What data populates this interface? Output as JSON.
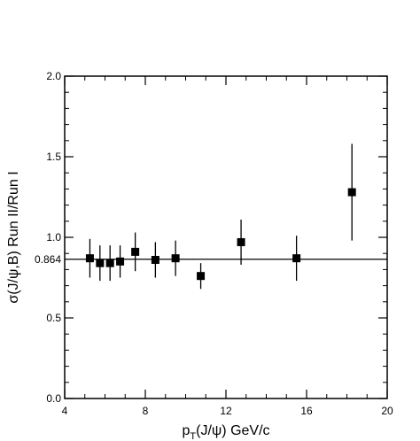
{
  "chart_data": {
    "type": "scatter",
    "title": "",
    "xlabel": "p_T(J/ψ) GeV/c",
    "ylabel": "σ(J/ψ,B) Run II/Run I",
    "xlim": [
      4,
      20
    ],
    "ylim": [
      0.0,
      2.0
    ],
    "x_ticks": [
      4,
      8,
      12,
      16,
      20
    ],
    "y_ticks": [
      0.0,
      0.5,
      1.0,
      1.5,
      2.0
    ],
    "y_tick_labels": [
      "0.0",
      "0.5",
      "1.0",
      "1.5",
      "2.0"
    ],
    "x_minor_step": 1,
    "y_minor_step": 0.1,
    "grid": false,
    "reference_line": {
      "y": 0.864,
      "label": "0.864"
    },
    "marker": "square",
    "color": "#000000",
    "points": [
      {
        "x": 5.25,
        "y": 0.87,
        "err": 0.12
      },
      {
        "x": 5.75,
        "y": 0.84,
        "err": 0.11
      },
      {
        "x": 6.25,
        "y": 0.84,
        "err": 0.11
      },
      {
        "x": 6.75,
        "y": 0.85,
        "err": 0.1
      },
      {
        "x": 7.5,
        "y": 0.91,
        "err": 0.12
      },
      {
        "x": 8.5,
        "y": 0.86,
        "err": 0.11
      },
      {
        "x": 9.5,
        "y": 0.87,
        "err": 0.11
      },
      {
        "x": 10.75,
        "y": 0.76,
        "err": 0.08
      },
      {
        "x": 12.75,
        "y": 0.97,
        "err": 0.14
      },
      {
        "x": 15.5,
        "y": 0.87,
        "err": 0.14
      },
      {
        "x": 18.25,
        "y": 1.28,
        "err": 0.3
      }
    ]
  }
}
